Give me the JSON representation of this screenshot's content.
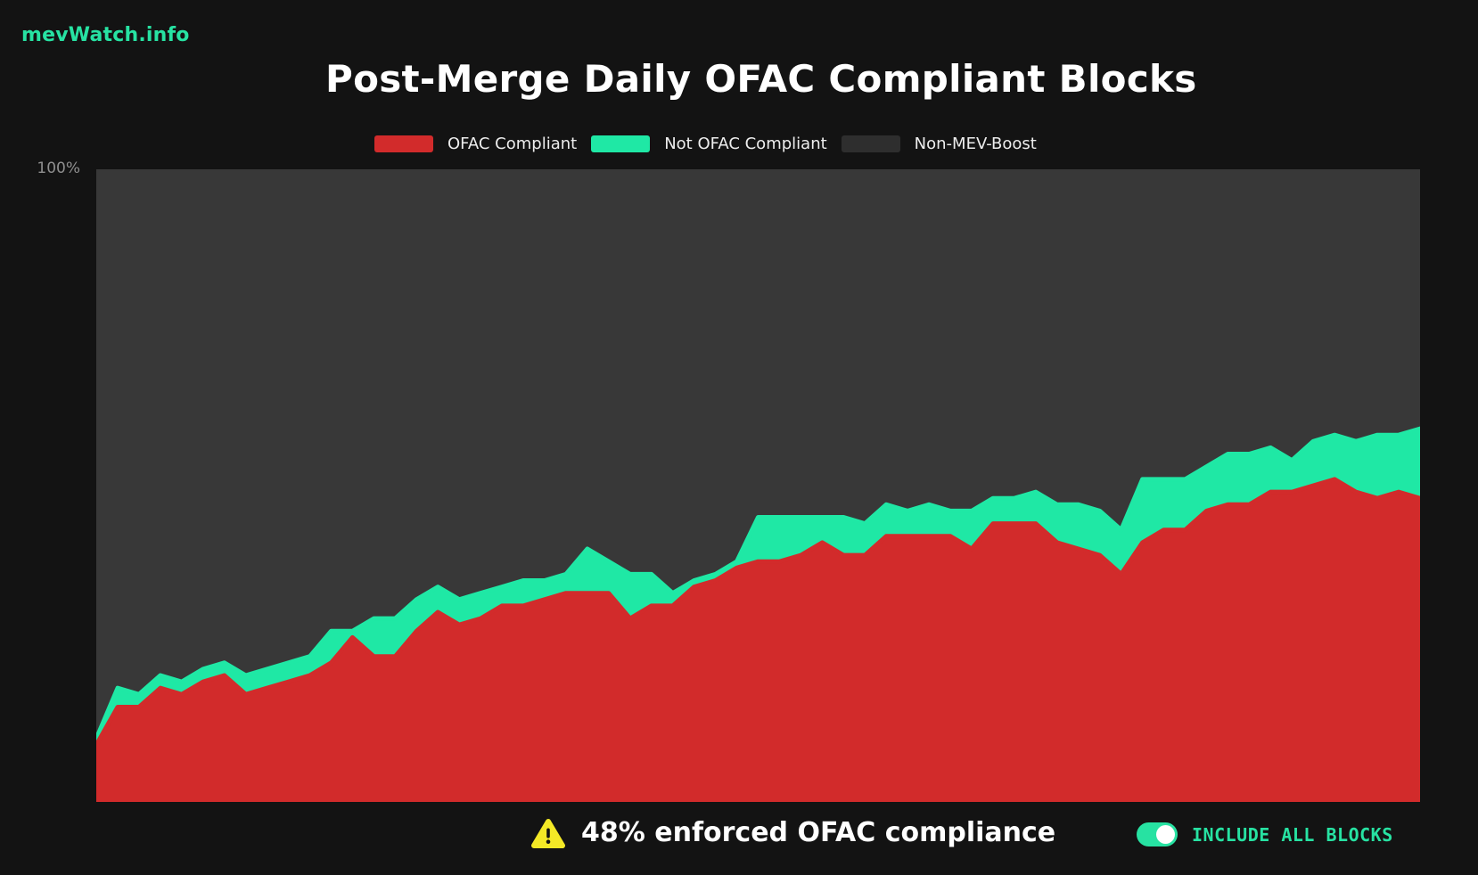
{
  "header": {
    "logo": "mevWatch.info",
    "title": "Post-Merge Daily OFAC Compliant Blocks"
  },
  "legend": {
    "items": [
      {
        "label": "OFAC Compliant",
        "color": "#d22b2b"
      },
      {
        "label": "Not OFAC Compliant",
        "color": "#1fe8a5"
      },
      {
        "label": "Non-MEV-Boost",
        "color": "#2e2e2e"
      }
    ]
  },
  "chart": {
    "y_top_label": "100%",
    "plot_background": "#383838"
  },
  "chart_data": {
    "type": "area",
    "stacked": true,
    "title": "Post-Merge Daily OFAC Compliant Blocks",
    "x_description": "daily blocks since the merge, oldest to newest (no x-axis tick labels shown)",
    "ylabel": "",
    "xlabel": "",
    "ylim": [
      0,
      100
    ],
    "unit": "percent of all daily blocks",
    "y_tick_labels": [
      "100%"
    ],
    "grid": false,
    "legend_position": "top",
    "series": [
      {
        "name": "OFAC Compliant",
        "color": "#d22b2b",
        "values": [
          9,
          15,
          15,
          18,
          17,
          19,
          20,
          17,
          18,
          19,
          20,
          22,
          26,
          23,
          23,
          27,
          30,
          28,
          29,
          31,
          31,
          32,
          33,
          33,
          33,
          29,
          31,
          31,
          34,
          35,
          37,
          38,
          38,
          39,
          41,
          39,
          39,
          42,
          42,
          42,
          42,
          40,
          44,
          44,
          44,
          41,
          40,
          39,
          36,
          41,
          43,
          43,
          46,
          47,
          47,
          49,
          49,
          50,
          51,
          49,
          48,
          49,
          48
        ]
      },
      {
        "name": "Not OFAC Compliant",
        "color": "#1fe8a5",
        "values": [
          1,
          3,
          2,
          2,
          2,
          2,
          2,
          3,
          3,
          3,
          3,
          5,
          1,
          6,
          6,
          5,
          4,
          4,
          4,
          3,
          4,
          3,
          3,
          7,
          5,
          7,
          5,
          2,
          1,
          1,
          1,
          7,
          7,
          6,
          4,
          6,
          5,
          5,
          4,
          5,
          4,
          6,
          4,
          4,
          5,
          6,
          7,
          7,
          7,
          10,
          8,
          8,
          7,
          8,
          8,
          7,
          5,
          7,
          7,
          8,
          10,
          9,
          11
        ]
      },
      {
        "name": "Non-MEV-Boost",
        "color": "#383838",
        "values": [
          90,
          82,
          83,
          80,
          81,
          79,
          78,
          80,
          79,
          78,
          77,
          73,
          73,
          71,
          71,
          68,
          66,
          68,
          67,
          66,
          65,
          65,
          64,
          60,
          62,
          64,
          64,
          67,
          65,
          64,
          62,
          55,
          55,
          55,
          55,
          55,
          56,
          53,
          54,
          53,
          54,
          54,
          52,
          52,
          51,
          53,
          53,
          54,
          57,
          49,
          49,
          49,
          47,
          45,
          45,
          44,
          46,
          43,
          42,
          43,
          42,
          42,
          41
        ]
      }
    ]
  },
  "footer": {
    "message": "48% enforced OFAC compliance",
    "warning_icon_color": "#f4e926",
    "toggle_label": "INCLUDE ALL BLOCKS",
    "toggle_state": "on",
    "accent_color": "#27e2a2"
  }
}
